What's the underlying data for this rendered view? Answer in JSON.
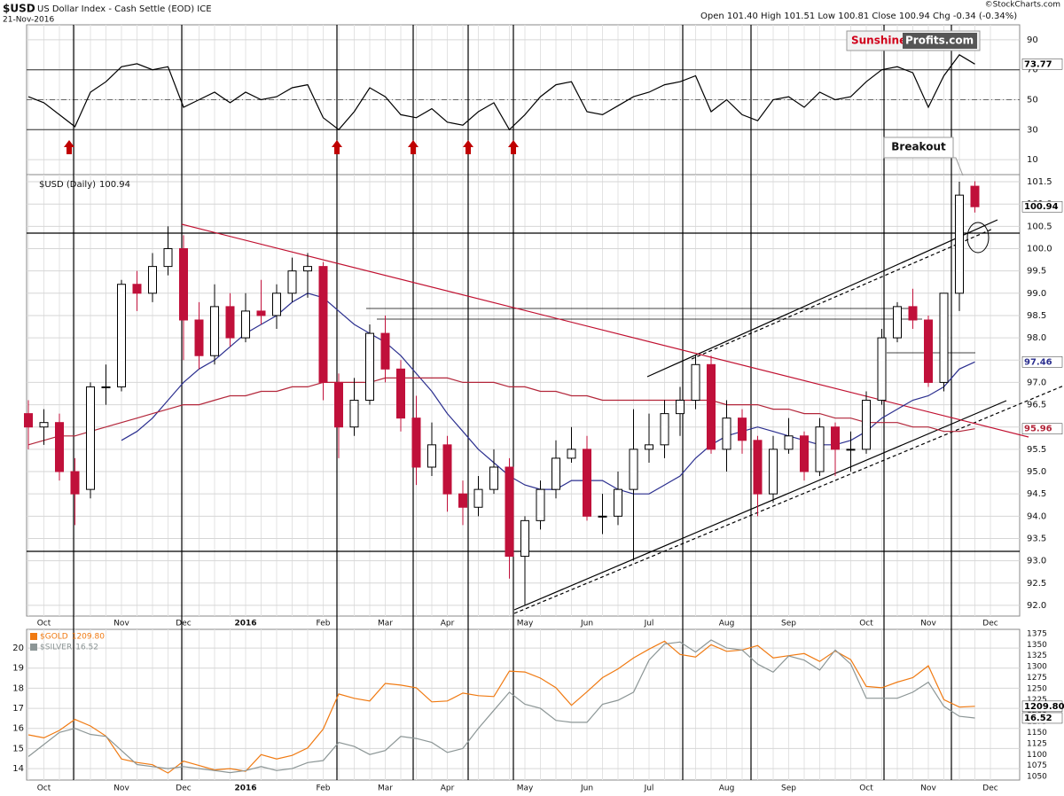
{
  "header": {
    "symbol": "$USD",
    "name": "US Dollar Index - Cash Settle (EOD) ICE",
    "date": "21-Nov-2016",
    "quote": "Open 101.40 High 101.51 Low 100.81 Close 100.94 Chg -0.34 (-0.34%)",
    "copyright": "©StockCharts.com",
    "logo": [
      "Sunshine",
      "Profits.com"
    ]
  },
  "chart_data": [
    {
      "type": "line",
      "ylim": [
        0,
        100
      ],
      "yticks": [
        10,
        30,
        50,
        70,
        90
      ],
      "threshold_lines": [
        30,
        50,
        70
      ],
      "grid": true,
      "series": [
        {
          "color": "#000000",
          "values": [
            52,
            48,
            40,
            32,
            55,
            62,
            72,
            74,
            70,
            72,
            45,
            50,
            55,
            48,
            55,
            50,
            52,
            58,
            60,
            38,
            30,
            42,
            58,
            52,
            40,
            38,
            44,
            35,
            33,
            42,
            48,
            30,
            40,
            52,
            60,
            62,
            42,
            40,
            46,
            52,
            55,
            60,
            62,
            66,
            42,
            50,
            40,
            36,
            50,
            52,
            45,
            55,
            50,
            52,
            62,
            70,
            72,
            68,
            45,
            66,
            80,
            73.77,
            null
          ]
        }
      ]
    },
    {
      "type": "candlestick",
      "title": "$USD (Daily)",
      "annotations": [
        "Breakout"
      ],
      "ylim": [
        91.76,
        101.66
      ],
      "grid": true,
      "up_color": "#000000",
      "down_color": "#c0103a",
      "yticks": [
        {
          "value": 92,
          "label": "92.0"
        },
        92.5,
        {
          "value": 93,
          "label": "93.0"
        },
        93.5,
        {
          "value": 94,
          "label": "94.0"
        },
        94.5,
        {
          "value": 95,
          "label": "95.0"
        },
        95.5,
        {
          "value": 96,
          "label": "96.0"
        },
        96.5,
        {
          "value": 97,
          "label": "97.0"
        },
        97.5,
        {
          "value": 98,
          "label": "98.0"
        },
        98.5,
        {
          "value": 99,
          "label": "99.0"
        },
        99.5,
        {
          "value": 100,
          "label": "100.0"
        },
        100.5,
        {
          "value": 101,
          "label": "101.0"
        },
        101.5
      ],
      "categories": [
        null,
        "Oct",
        null,
        null,
        null,
        null,
        "Nov",
        null,
        null,
        null,
        "Dec",
        null,
        null,
        null,
        "2016",
        null,
        null,
        null,
        null,
        "Feb",
        null,
        null,
        null,
        "Mar",
        null,
        null,
        null,
        "Apr",
        null,
        null,
        null,
        null,
        "May",
        null,
        null,
        null,
        "Jun",
        null,
        null,
        null,
        "Jul",
        null,
        null,
        null,
        null,
        "Aug",
        null,
        null,
        null,
        "Sep",
        null,
        null,
        null,
        null,
        "Oct",
        null,
        null,
        null,
        "Nov",
        null,
        null,
        null,
        "Dec"
      ],
      "open": [
        96.3,
        96.0,
        96.1,
        95.0,
        94.6,
        96.9,
        96.9,
        99.2,
        99.0,
        99.6,
        100.0,
        98.4,
        97.6,
        98.7,
        98.0,
        98.6,
        98.5,
        99.0,
        99.5,
        99.6,
        97.0,
        96.0,
        96.6,
        98.1,
        97.3,
        96.2,
        95.1,
        95.6,
        94.5,
        94.2,
        94.6,
        95.1,
        93.1,
        93.9,
        94.6,
        95.3,
        95.5,
        94.0,
        94.0,
        94.6,
        95.5,
        95.6,
        96.3,
        96.6,
        97.4,
        95.5,
        96.2,
        95.7,
        94.5,
        95.5,
        95.8,
        95.0,
        96.0,
        95.5,
        95.5,
        96.6,
        98.0,
        98.7,
        98.4,
        97.0,
        99.0,
        101.4,
        null
      ],
      "high": [
        96.6,
        96.4,
        96.3,
        95.3,
        97.0,
        97.4,
        99.3,
        99.5,
        99.9,
        100.5,
        100.3,
        98.8,
        99.2,
        99.0,
        99.0,
        99.3,
        99.2,
        99.8,
        99.9,
        99.7,
        97.2,
        97.1,
        98.3,
        98.5,
        97.5,
        96.7,
        96.1,
        95.8,
        94.8,
        94.9,
        95.5,
        95.3,
        94.0,
        94.8,
        95.7,
        96.0,
        95.8,
        94.5,
        95.0,
        96.4,
        96.3,
        96.6,
        96.9,
        97.6,
        97.6,
        96.6,
        96.4,
        95.8,
        95.8,
        96.2,
        95.9,
        96.2,
        96.1,
        95.9,
        96.8,
        98.2,
        98.8,
        99.1,
        98.5,
        99.0,
        101.5,
        101.51,
        null
      ],
      "low": [
        95.5,
        95.6,
        94.8,
        93.8,
        94.4,
        96.5,
        96.8,
        98.6,
        98.8,
        99.4,
        97.5,
        97.3,
        97.4,
        97.8,
        97.9,
        98.3,
        98.2,
        98.8,
        98.9,
        96.6,
        95.3,
        95.8,
        96.5,
        97.0,
        95.9,
        94.7,
        94.9,
        94.1,
        93.8,
        94.0,
        94.5,
        92.6,
        92.0,
        93.7,
        94.4,
        95.2,
        93.9,
        93.6,
        93.8,
        93.0,
        95.2,
        95.3,
        95.8,
        96.4,
        95.4,
        95.0,
        95.4,
        94.0,
        94.3,
        95.4,
        94.8,
        94.9,
        94.9,
        95.0,
        95.4,
        96.5,
        97.9,
        98.2,
        96.9,
        96.8,
        98.6,
        100.81,
        null
      ],
      "close": [
        96.0,
        96.1,
        95.0,
        94.5,
        96.9,
        96.9,
        99.2,
        99.0,
        99.6,
        100.0,
        98.4,
        97.6,
        98.7,
        98.0,
        98.6,
        98.5,
        99.0,
        99.5,
        99.6,
        97.0,
        96.0,
        96.6,
        98.1,
        97.3,
        96.2,
        95.1,
        95.6,
        94.5,
        94.2,
        94.6,
        95.1,
        93.1,
        93.9,
        94.6,
        95.3,
        95.5,
        94.0,
        94.0,
        94.6,
        95.5,
        95.6,
        96.3,
        96.6,
        97.4,
        95.5,
        96.2,
        95.7,
        94.5,
        95.5,
        95.8,
        95.0,
        96.0,
        95.5,
        95.5,
        96.6,
        98.0,
        98.7,
        98.4,
        97.0,
        99.0,
        101.2,
        100.94,
        null
      ],
      "series": [
        {
          "color": "#2b2f8f",
          "values": [
            null,
            null,
            null,
            null,
            null,
            null,
            95.7,
            95.9,
            96.2,
            96.6,
            97.0,
            97.3,
            97.5,
            97.8,
            98.1,
            98.3,
            98.5,
            98.8,
            99.0,
            98.9,
            98.6,
            98.3,
            98.1,
            97.9,
            97.6,
            97.2,
            96.8,
            96.3,
            95.9,
            95.5,
            95.2,
            94.9,
            94.7,
            94.6,
            94.6,
            94.8,
            94.8,
            94.8,
            94.6,
            94.5,
            94.5,
            94.7,
            94.9,
            95.3,
            95.6,
            95.8,
            95.9,
            96.0,
            95.9,
            95.8,
            95.7,
            95.6,
            95.6,
            95.7,
            95.9,
            96.2,
            96.4,
            96.6,
            96.7,
            96.9,
            97.3,
            97.46,
            null
          ]
        },
        {
          "color": "#b3263a",
          "values": [
            95.6,
            95.7,
            95.8,
            95.8,
            95.9,
            96.0,
            96.1,
            96.2,
            96.3,
            96.4,
            96.5,
            96.5,
            96.6,
            96.7,
            96.7,
            96.8,
            96.8,
            96.9,
            96.9,
            97.0,
            97.0,
            97.0,
            97.0,
            97.1,
            97.1,
            97.1,
            97.1,
            97.1,
            97.0,
            97.0,
            97.0,
            96.9,
            96.9,
            96.8,
            96.8,
            96.7,
            96.7,
            96.6,
            96.6,
            96.6,
            96.6,
            96.6,
            96.6,
            96.6,
            96.6,
            96.5,
            96.5,
            96.5,
            96.4,
            96.4,
            96.3,
            96.3,
            96.2,
            96.2,
            96.1,
            96.1,
            96.1,
            96.0,
            96.0,
            95.9,
            95.9,
            95.96,
            null
          ]
        }
      ]
    },
    {
      "type": "line",
      "grid": true,
      "ylim": [
        13.43,
        20.93
      ],
      "yticks": [
        14,
        15,
        16,
        17,
        18,
        19,
        20
      ],
      "y2lim": [
        1042,
        1385
      ],
      "y2ticks": [
        1050,
        1075,
        1100,
        1125,
        1150,
        1175,
        1200,
        1225,
        1250,
        1275,
        1300,
        1325,
        1350,
        1375
      ],
      "categories": [
        null,
        "Oct",
        null,
        null,
        null,
        null,
        "Nov",
        null,
        null,
        null,
        "Dec",
        null,
        null,
        null,
        "2016",
        null,
        null,
        null,
        null,
        "Feb",
        null,
        null,
        null,
        "Mar",
        null,
        null,
        null,
        "Apr",
        null,
        null,
        null,
        null,
        "May",
        null,
        null,
        null,
        "Jun",
        null,
        null,
        null,
        "Jul",
        null,
        null,
        null,
        null,
        "Aug",
        null,
        null,
        null,
        "Sep",
        null,
        null,
        null,
        null,
        "Oct",
        null,
        null,
        null,
        "Nov",
        null,
        null,
        null,
        "Dec"
      ],
      "series": [
        {
          "name": "$GOLD",
          "axis": "y2",
          "color": "#f07a12",
          "values": [
            1145,
            1138,
            1155,
            1180,
            1165,
            1142,
            1090,
            1082,
            1077,
            1058,
            1085,
            1075,
            1065,
            1068,
            1062,
            1100,
            1090,
            1098,
            1115,
            1158,
            1238,
            1228,
            1222,
            1262,
            1258,
            1252,
            1220,
            1222,
            1240,
            1234,
            1232,
            1290,
            1288,
            1274,
            1252,
            1212,
            1243,
            1275,
            1295,
            1320,
            1340,
            1358,
            1328,
            1322,
            1350,
            1335,
            1338,
            1348,
            1320,
            1325,
            1330,
            1312,
            1336,
            1316,
            1255,
            1252,
            1265,
            1275,
            1302,
            1225,
            1208,
            1209.8,
            null
          ],
          "value_labels": [
            null,
            null,
            null,
            null,
            null,
            null,
            null,
            null,
            null,
            null,
            null,
            null,
            null,
            null,
            null,
            null,
            null,
            null,
            null,
            null,
            null,
            null,
            null,
            null,
            null,
            null,
            null,
            null,
            null,
            null,
            null,
            null,
            null,
            null,
            null,
            null,
            null,
            null,
            null,
            null,
            null,
            null,
            null,
            null,
            null,
            null,
            null,
            null,
            null,
            null,
            null,
            null,
            null,
            null,
            null,
            null,
            null,
            null,
            null,
            null,
            null,
            "1209.80",
            null
          ]
        },
        {
          "name": "$SILVER",
          "color": "#8c9696",
          "values": [
            14.6,
            15.2,
            15.8,
            16.0,
            15.7,
            15.6,
            14.9,
            14.2,
            14.1,
            14.0,
            14.1,
            14.0,
            13.9,
            13.8,
            13.9,
            14.1,
            13.9,
            14.0,
            14.3,
            14.4,
            15.3,
            15.1,
            14.7,
            14.9,
            15.6,
            15.5,
            15.3,
            14.8,
            15.0,
            16.0,
            16.9,
            17.8,
            17.2,
            17.0,
            16.4,
            16.3,
            16.3,
            17.2,
            17.4,
            17.8,
            19.4,
            20.2,
            20.3,
            19.8,
            20.4,
            20.0,
            19.9,
            19.2,
            18.8,
            19.6,
            19.4,
            18.9,
            19.9,
            19.2,
            17.5,
            17.5,
            17.5,
            17.8,
            18.3,
            17.1,
            16.6,
            16.52,
            null
          ]
        }
      ]
    }
  ]
}
